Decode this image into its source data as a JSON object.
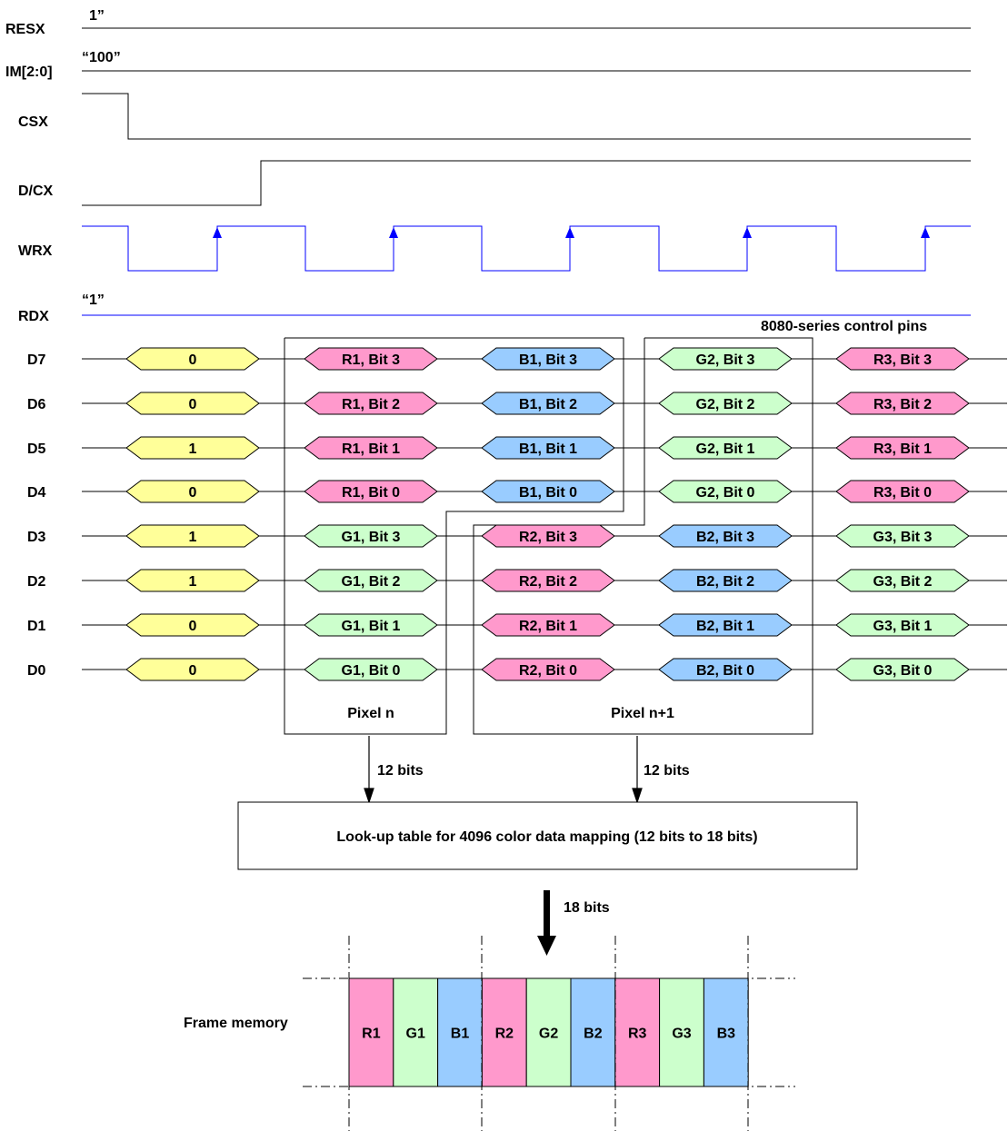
{
  "control_pins": [
    {
      "id": "resx",
      "label": "RESX",
      "value": "1”"
    },
    {
      "id": "im",
      "label": "IM[2:0]",
      "value": "“100”"
    },
    {
      "id": "csx",
      "label": "CSX"
    },
    {
      "id": "dcx",
      "label": "D/CX"
    },
    {
      "id": "wrx",
      "label": "WRX"
    },
    {
      "id": "rdx",
      "label": "RDX",
      "value": "“1”"
    }
  ],
  "control_group_label": "8080-series control pins",
  "data_lines": [
    "D7",
    "D6",
    "D5",
    "D4",
    "D3",
    "D2",
    "D1",
    "D0"
  ],
  "data_cells": [
    [
      "0",
      "R1, Bit 3",
      "B1, Bit 3",
      "G2, Bit 3",
      "R3, Bit 3"
    ],
    [
      "0",
      "R1, Bit 2",
      "B1, Bit 2",
      "G2, Bit 2",
      "R3, Bit 2"
    ],
    [
      "1",
      "R1, Bit 1",
      "B1, Bit 1",
      "G2, Bit 1",
      "R3, Bit 1"
    ],
    [
      "0",
      "R1, Bit 0",
      "B1, Bit 0",
      "G2, Bit 0",
      "R3, Bit 0"
    ],
    [
      "1",
      "G1, Bit 3",
      "R2, Bit 3",
      "B2, Bit 3",
      "G3, Bit 3"
    ],
    [
      "1",
      "G1, Bit 2",
      "R2, Bit 2",
      "B2, Bit 2",
      "G3, Bit 2"
    ],
    [
      "0",
      "G1, Bit 1",
      "R2, Bit 1",
      "B2, Bit 1",
      "G3, Bit 1"
    ],
    [
      "0",
      "G1, Bit 0",
      "R2, Bit 0",
      "B2, Bit 0",
      "G3, Bit 0"
    ]
  ],
  "pixel_groups": [
    {
      "id": "pixel-n",
      "label": "Pixel n",
      "bits_label": "12 bits"
    },
    {
      "id": "pixel-n1",
      "label": "Pixel n+1",
      "bits_label": "12 bits"
    }
  ],
  "lut_label": "Look-up table for 4096 color data mapping (12 bits to 18 bits)",
  "lut_output_label": "18 bits",
  "frame_memory": {
    "label": "Frame memory",
    "cells": [
      "R1",
      "G1",
      "B1",
      "R2",
      "G2",
      "B2",
      "R3",
      "G3",
      "B3"
    ]
  },
  "colors": {
    "yellow": "#ffff99",
    "red": "#ff99cc",
    "green": "#ccffcc",
    "blue": "#99ccff",
    "wrx_line": "#0000ff",
    "rdx_line": "#0000ff"
  }
}
